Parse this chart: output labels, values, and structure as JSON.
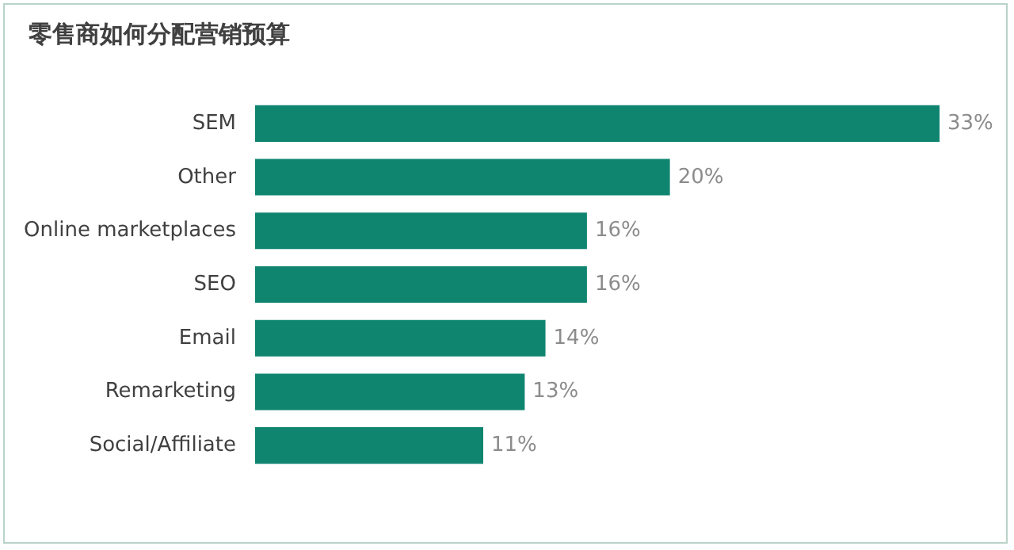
{
  "chart_data": {
    "type": "bar",
    "orientation": "horizontal",
    "title": "零售商如何分配营销预算",
    "categories": [
      "SEM",
      "Other",
      "Online marketplaces",
      "SEO",
      "Email",
      "Remarketing",
      "Social/Affiliate"
    ],
    "values": [
      33,
      20,
      16,
      16,
      14,
      13,
      11
    ],
    "value_labels": [
      "33%",
      "20%",
      "16%",
      "16%",
      "14%",
      "13%",
      "11%"
    ],
    "color": "#0f8570"
  }
}
